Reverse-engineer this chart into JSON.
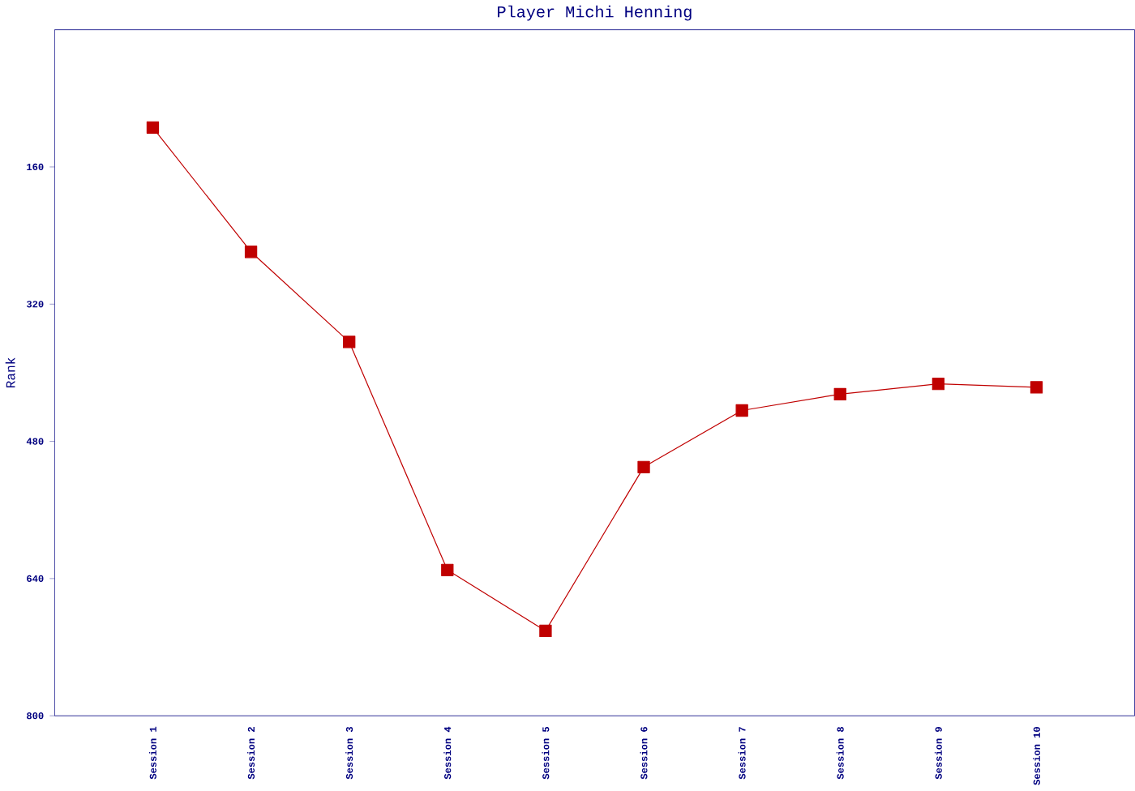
{
  "chart_data": {
    "type": "line",
    "title": "Player Michi Henning",
    "ylabel": "Rank",
    "categories": [
      "Session 1",
      "Session 2",
      "Session 3",
      "Session 4",
      "Session 5",
      "Session 6",
      "Session 7",
      "Session 8",
      "Session 9",
      "Session 10"
    ],
    "series": [
      {
        "color": "#c00000",
        "values": [
          114,
          259,
          364,
          630,
          701,
          510,
          444,
          425,
          413,
          417
        ]
      }
    ],
    "ylim": [
      800,
      0
    ],
    "yticks": [
      160,
      320,
      480,
      640,
      800
    ],
    "marker": "square",
    "line_style": "solid",
    "grid": false
  }
}
